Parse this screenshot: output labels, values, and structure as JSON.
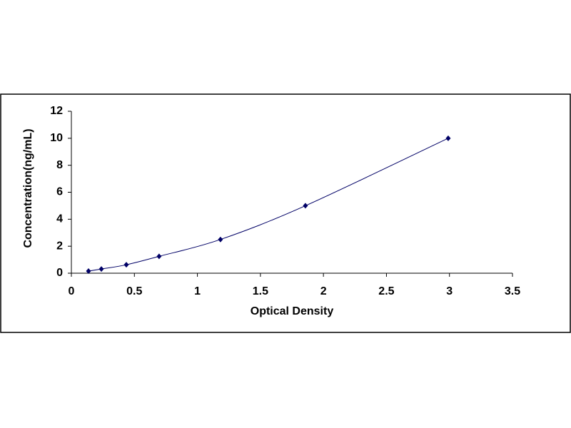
{
  "chart_data": {
    "type": "scatter",
    "x_label": "Optical Density",
    "y_label": "Concentration(ng/mL)",
    "series": [
      {
        "color": "#000066",
        "x": [
          0.136,
          0.238,
          0.436,
          0.696,
          1.183,
          1.857,
          2.99
        ],
        "values": [
          0.156,
          0.312,
          0.625,
          1.25,
          2.5,
          5,
          10
        ]
      }
    ],
    "xlim": [
      0,
      3.5
    ],
    "xticks": [
      0,
      0.5,
      1,
      1.5,
      2,
      2.5,
      3,
      3.5
    ],
    "ylim": [
      0,
      12
    ],
    "yticks": [
      0,
      2,
      4,
      6,
      8,
      10,
      12
    ],
    "grid": false,
    "smooth_line": true
  }
}
